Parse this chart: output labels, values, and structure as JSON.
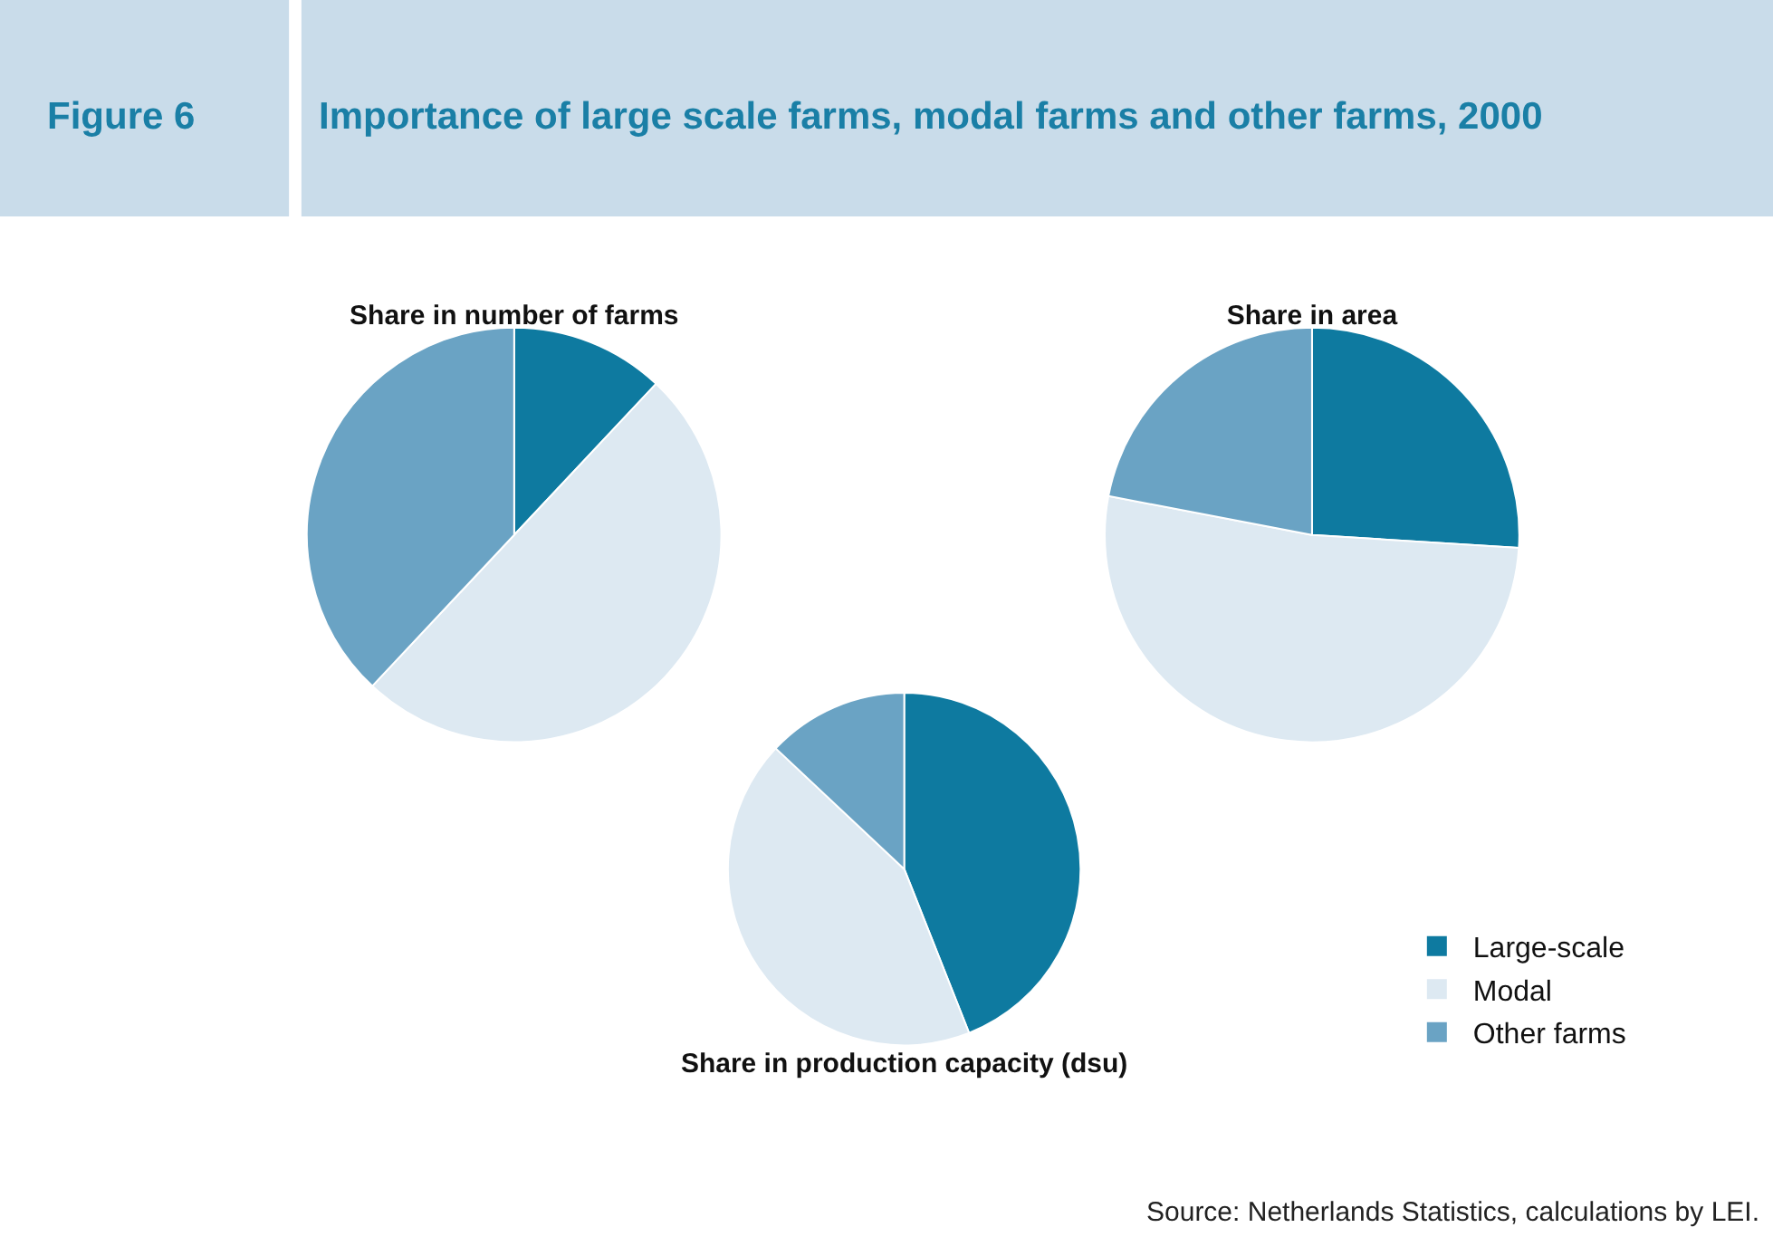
{
  "chart_data": [
    {
      "type": "pie",
      "title": "Share in number of farms",
      "categories": [
        "Large-scale",
        "Modal",
        "Other farms"
      ],
      "values": [
        12,
        50,
        38
      ],
      "colors": [
        "#0e7aa0",
        "#dde9f2",
        "#6aa3c4"
      ],
      "legend": "bottom right",
      "annotations": [
        "Figure 6",
        "Importance of large scale farms, modal farms and other farms, 2000"
      ]
    },
    {
      "type": "pie",
      "title": "Share in area",
      "categories": [
        null,
        null,
        null
      ],
      "values": [
        26,
        52,
        22
      ],
      "colors": [
        "#0e7aa0",
        "#dde9f2",
        "#6aa3c4"
      ]
    },
    {
      "type": "pie",
      "title": "Share in production capacity (dsu)",
      "categories": [
        null,
        null,
        null
      ],
      "values": [
        44,
        43,
        13
      ],
      "colors": [
        "#0e7aa0",
        "#dde9f2",
        "#6aa3c4"
      ],
      "annotations": [
        "Source: Netherlands Statistics, calculations by LEI."
      ]
    }
  ]
}
